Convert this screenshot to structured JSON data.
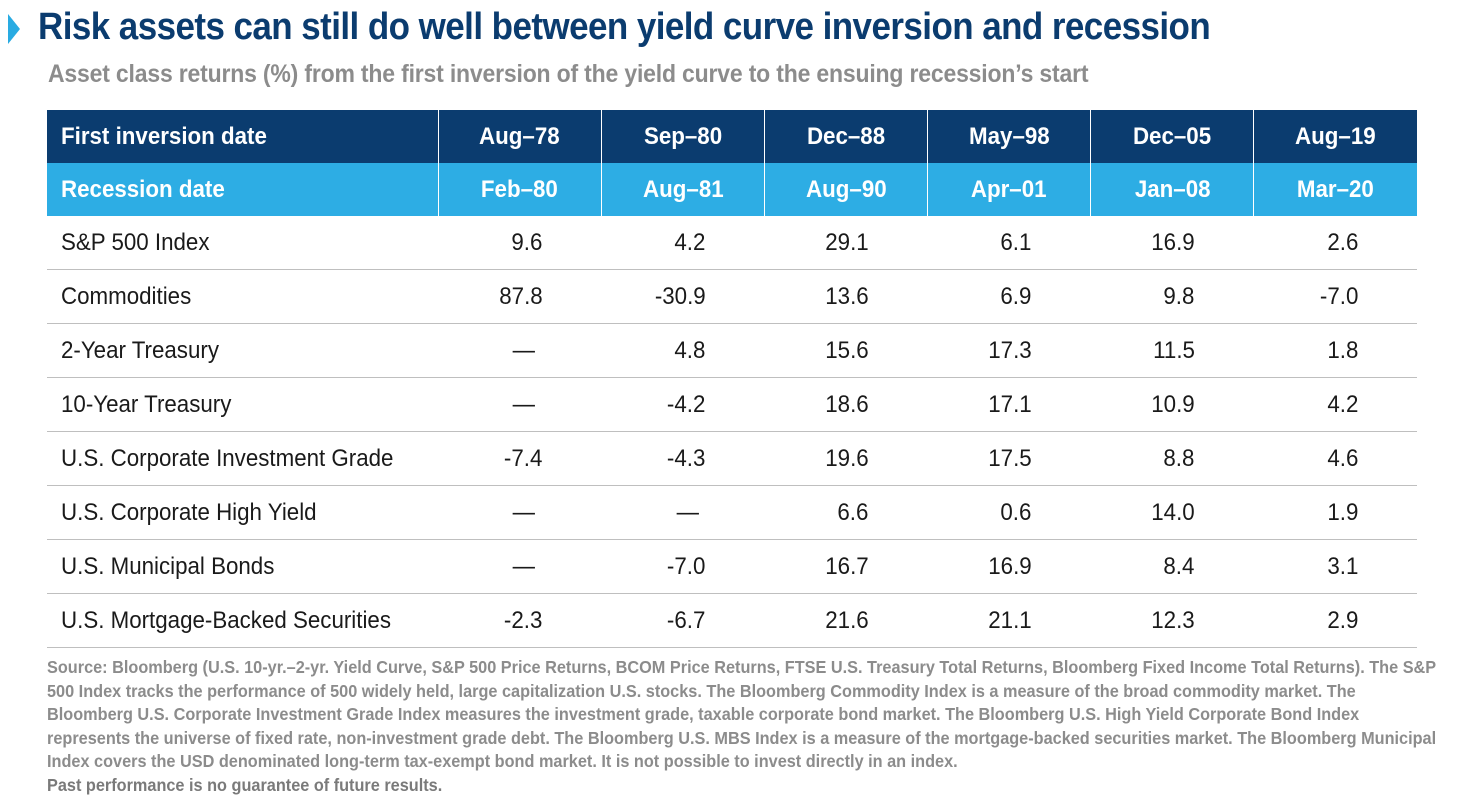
{
  "title": "Risk assets can still do well between yield curve inversion and recession",
  "subtitle": "Asset class returns (%) from the first inversion of the yield curve to the ensuing recession’s start",
  "colors": {
    "navy": "#0B3C6F",
    "accent": "#2DADE4",
    "gray_text": "#8C8C8C"
  },
  "chart_data": {
    "type": "table",
    "title": "Risk assets can still do well between yield curve inversion and recession",
    "subtitle": "Asset class returns (%) from the first inversion of the yield curve to the ensuing recession’s start",
    "header_rows": [
      {
        "label": "First inversion date",
        "values": [
          "Aug–78",
          "Sep–80",
          "Dec–88",
          "May–98",
          "Dec–05",
          "Aug–19"
        ]
      },
      {
        "label": "Recession date",
        "values": [
          "Feb–80",
          "Aug–81",
          "Aug–90",
          "Apr–01",
          "Jan–08",
          "Mar–20"
        ]
      }
    ],
    "rows": [
      {
        "label": "S&P 500 Index",
        "values": [
          "9.6",
          "4.2",
          "29.1",
          "6.1",
          "16.9",
          "2.6"
        ]
      },
      {
        "label": "Commodities",
        "values": [
          "87.8",
          "-30.9",
          "13.6",
          "6.9",
          "9.8",
          "-7.0"
        ]
      },
      {
        "label": "2-Year Treasury",
        "values": [
          "—",
          "4.8",
          "15.6",
          "17.3",
          "11.5",
          "1.8"
        ]
      },
      {
        "label": "10-Year Treasury",
        "values": [
          "—",
          "-4.2",
          "18.6",
          "17.1",
          "10.9",
          "4.2"
        ]
      },
      {
        "label": "U.S. Corporate Investment Grade",
        "values": [
          "-7.4",
          "-4.3",
          "19.6",
          "17.5",
          "8.8",
          "4.6"
        ]
      },
      {
        "label": "U.S. Corporate High Yield",
        "values": [
          "—",
          "—",
          "6.6",
          "0.6",
          "14.0",
          "1.9"
        ]
      },
      {
        "label": "U.S. Municipal Bonds",
        "values": [
          "—",
          "-7.0",
          "16.7",
          "16.9",
          "8.4",
          "3.1"
        ]
      },
      {
        "label": "U.S. Mortgage-Backed Securities",
        "values": [
          "-2.3",
          "-6.7",
          "21.6",
          "21.1",
          "12.3",
          "2.9"
        ]
      }
    ]
  },
  "footer": {
    "source": "Source: Bloomberg (U.S. 10-yr.–2-yr. Yield Curve, S&P 500 Price Returns, BCOM Price Returns, FTSE U.S. Treasury Total Returns, Bloomberg Fixed Income Total Returns). The S&P 500 Index tracks the performance of 500 widely held, large capitalization U.S. stocks. The Bloomberg Commodity Index is a measure of the broad commodity market. The Bloomberg U.S. Corporate Investment Grade Index measures the investment grade, taxable corporate bond market. The Bloomberg U.S. High Yield Corporate Bond Index represents the universe of fixed rate, non-investment grade debt. The Bloomberg U.S. MBS Index is a measure of the mortgage-backed securities market. The Bloomberg Municipal Index covers the USD denominated long-term tax-exempt bond market. It is not possible to invest directly in an index.",
    "disclaimer": "Past performance is no guarantee of future results."
  }
}
